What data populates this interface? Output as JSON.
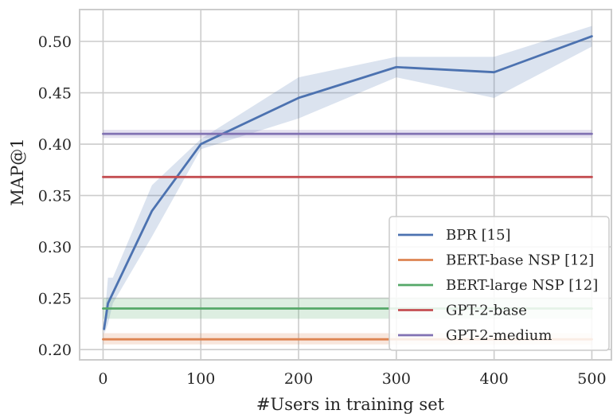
{
  "chart_data": {
    "type": "line",
    "title": "",
    "xlabel": "#Users in training set",
    "ylabel": "MAP@1",
    "xlim": [
      -24,
      520
    ],
    "ylim": [
      0.19,
      0.531
    ],
    "xticks": [
      0,
      100,
      200,
      300,
      400,
      500
    ],
    "yticks": [
      0.2,
      0.25,
      0.3,
      0.35,
      0.4,
      0.45,
      0.5
    ],
    "xtick_labels": [
      "0",
      "100",
      "200",
      "300",
      "400",
      "500"
    ],
    "ytick_labels": [
      "0.20",
      "0.25",
      "0.30",
      "0.35",
      "0.40",
      "0.45",
      "0.50"
    ],
    "grid": true,
    "legend_position": "lower-right",
    "series": [
      {
        "name": "BPR [15]",
        "color": "#4c72b0",
        "x": [
          1,
          5,
          10,
          50,
          100,
          200,
          300,
          400,
          500
        ],
        "y": [
          0.22,
          0.245,
          0.255,
          0.335,
          0.4,
          0.445,
          0.475,
          0.47,
          0.505
        ],
        "y_low": [
          0.215,
          0.225,
          0.245,
          0.31,
          0.395,
          0.425,
          0.465,
          0.445,
          0.495
        ],
        "y_high": [
          0.225,
          0.27,
          0.27,
          0.36,
          0.405,
          0.465,
          0.485,
          0.485,
          0.515
        ]
      },
      {
        "name": "BERT-base NSP [12]",
        "color": "#dd8452",
        "x": [
          0,
          500
        ],
        "y": [
          0.21,
          0.21
        ],
        "y_low": [
          0.205,
          0.205
        ],
        "y_high": [
          0.216,
          0.216
        ]
      },
      {
        "name": "BERT-large NSP [12]",
        "color": "#55a868",
        "x": [
          0,
          500
        ],
        "y": [
          0.24,
          0.24
        ],
        "y_low": [
          0.23,
          0.23
        ],
        "y_high": [
          0.25,
          0.25
        ]
      },
      {
        "name": "GPT-2-base",
        "color": "#c44e52",
        "x": [
          0,
          500
        ],
        "y": [
          0.368,
          0.368
        ],
        "y_low": [
          0.368,
          0.368
        ],
        "y_high": [
          0.368,
          0.368
        ]
      },
      {
        "name": "GPT-2-medium",
        "color": "#8172b3",
        "x": [
          0,
          500
        ],
        "y": [
          0.41,
          0.41
        ],
        "y_low": [
          0.406,
          0.406
        ],
        "y_high": [
          0.414,
          0.414
        ]
      }
    ]
  }
}
